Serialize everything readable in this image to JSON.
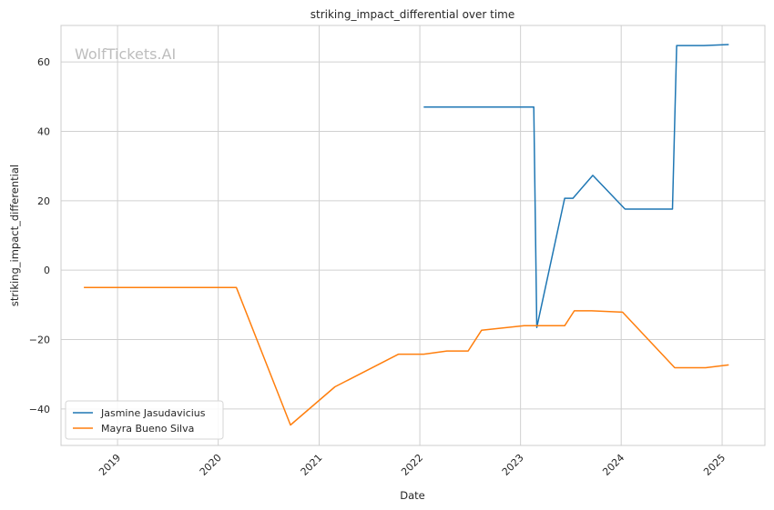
{
  "chart_data": {
    "type": "line",
    "title": "striking_impact_differential over time",
    "xlabel": "Date",
    "ylabel": "striking_impact_differential",
    "watermark": "WolfTickets.AI",
    "xlim": [
      "2018-06-10",
      "2025-06-05"
    ],
    "ylim": [
      -50.5,
      70.5
    ],
    "x_ticks": [
      "2019-01-01",
      "2020-01-01",
      "2021-01-01",
      "2022-01-01",
      "2023-01-01",
      "2024-01-01",
      "2025-01-01"
    ],
    "x_tick_labels": [
      "2019",
      "2020",
      "2021",
      "2022",
      "2023",
      "2024",
      "2025"
    ],
    "y_ticks": [
      -40,
      -20,
      0,
      20,
      40,
      60
    ],
    "y_tick_labels": [
      "−40",
      "−20",
      "0",
      "20",
      "40",
      "60"
    ],
    "grid": true,
    "legend_position": "lower-left",
    "series": [
      {
        "name": "Jasmine Jasudavicius",
        "color": "#1f77b4",
        "points": [
          [
            "2022-01-15",
            47.0
          ],
          [
            "2023-02-18",
            47.0
          ],
          [
            "2023-03-01",
            -16.5
          ],
          [
            "2023-06-10",
            20.7
          ],
          [
            "2023-07-10",
            20.7
          ],
          [
            "2023-09-20",
            27.3
          ],
          [
            "2024-01-15",
            17.6
          ],
          [
            "2024-07-05",
            17.6
          ],
          [
            "2024-07-20",
            64.7
          ],
          [
            "2024-10-26",
            64.7
          ],
          [
            "2025-01-25",
            65.0
          ]
        ]
      },
      {
        "name": "Mayra Bueno Silva",
        "color": "#ff7f0e",
        "points": [
          [
            "2018-09-01",
            -5.0
          ],
          [
            "2020-03-07",
            -5.0
          ],
          [
            "2020-09-19",
            -44.6
          ],
          [
            "2021-02-27",
            -33.6
          ],
          [
            "2021-10-16",
            -24.2
          ],
          [
            "2022-01-15",
            -24.2
          ],
          [
            "2022-04-09",
            -23.3
          ],
          [
            "2022-06-25",
            -23.3
          ],
          [
            "2022-08-13",
            -17.3
          ],
          [
            "2023-01-14",
            -16.0
          ],
          [
            "2023-06-10",
            -16.0
          ],
          [
            "2023-07-15",
            -11.7
          ],
          [
            "2023-09-16",
            -11.7
          ],
          [
            "2024-01-06",
            -12.1
          ],
          [
            "2024-07-13",
            -28.1
          ],
          [
            "2024-11-02",
            -28.1
          ],
          [
            "2025-01-25",
            -27.3
          ]
        ]
      }
    ]
  }
}
